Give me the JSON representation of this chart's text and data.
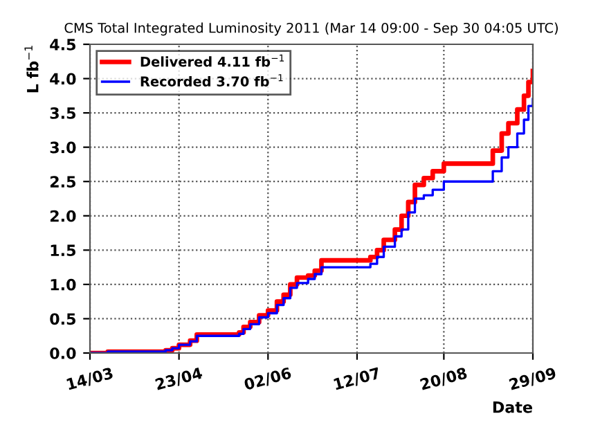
{
  "chart_data": {
    "type": "step",
    "title": "CMS Total Integrated Luminosity 2011 (Mar 14 09:00 - Sep 30 04:05 UTC)",
    "xlabel": "Date",
    "ylabel": "L fb$^{−1}$",
    "x": [
      "2011-03-14",
      "2011-03-22",
      "2011-04-11",
      "2011-04-17",
      "2011-04-20",
      "2011-04-23",
      "2011-04-28",
      "2011-05-01",
      "2011-05-17",
      "2011-05-20",
      "2011-05-22",
      "2011-05-25",
      "2011-05-29",
      "2011-06-02",
      "2011-06-06",
      "2011-06-09",
      "2011-06-12",
      "2011-06-15",
      "2011-06-20",
      "2011-06-23",
      "2011-06-26",
      "2011-07-15",
      "2011-07-18",
      "2011-07-21",
      "2011-07-24",
      "2011-07-29",
      "2011-08-01",
      "2011-08-04",
      "2011-08-07",
      "2011-08-11",
      "2011-08-15",
      "2011-08-20",
      "2011-09-07",
      "2011-09-11",
      "2011-09-15",
      "2011-09-18",
      "2011-09-22",
      "2011-09-25",
      "2011-09-27",
      "2011-09-29"
    ],
    "series": [
      {
        "name": "Delivered 4.11 fb$^{−1}$",
        "color": "#ff0000",
        "values": [
          0,
          0.02,
          0.02,
          0.04,
          0.07,
          0.12,
          0.18,
          0.27,
          0.27,
          0.3,
          0.38,
          0.45,
          0.55,
          0.62,
          0.75,
          0.85,
          1.0,
          1.1,
          1.13,
          1.2,
          1.35,
          1.35,
          1.4,
          1.5,
          1.65,
          1.8,
          2.0,
          2.2,
          2.45,
          2.55,
          2.65,
          2.76,
          2.76,
          2.95,
          3.2,
          3.35,
          3.55,
          3.75,
          3.95,
          4.11
        ]
      },
      {
        "name": "Recorded 3.70 fb$^{−1}$",
        "color": "#0000ff",
        "values": [
          0,
          0.02,
          0.02,
          0.04,
          0.07,
          0.12,
          0.17,
          0.25,
          0.25,
          0.28,
          0.35,
          0.42,
          0.52,
          0.58,
          0.7,
          0.8,
          0.95,
          1.02,
          1.08,
          1.15,
          1.25,
          1.25,
          1.3,
          1.4,
          1.55,
          1.7,
          1.8,
          2.05,
          2.25,
          2.3,
          2.38,
          2.5,
          2.5,
          2.65,
          2.85,
          3.0,
          3.2,
          3.4,
          3.6,
          3.7
        ]
      }
    ],
    "xlim": [
      "2011-03-14",
      "2011-09-29"
    ],
    "xticks": [
      {
        "value": "2011-03-14",
        "label": "14/03"
      },
      {
        "value": "2011-04-23",
        "label": "23/04"
      },
      {
        "value": "2011-06-02",
        "label": "02/06"
      },
      {
        "value": "2011-07-12",
        "label": "12/07"
      },
      {
        "value": "2011-08-20",
        "label": "20/08"
      },
      {
        "value": "2011-09-29",
        "label": "29/09"
      }
    ],
    "ylim": [
      0,
      4.5
    ],
    "yticks": [
      {
        "value": 0,
        "label": "0.0"
      },
      {
        "value": 0.5,
        "label": "0.5"
      },
      {
        "value": 1,
        "label": "1.0"
      },
      {
        "value": 1.5,
        "label": "1.5"
      },
      {
        "value": 2,
        "label": "2.0"
      },
      {
        "value": 2.5,
        "label": "2.5"
      },
      {
        "value": 3,
        "label": "3.0"
      },
      {
        "value": 3.5,
        "label": "3.5"
      },
      {
        "value": 4,
        "label": "4.0"
      },
      {
        "value": 4.5,
        "label": "4.5"
      }
    ],
    "grid": true,
    "legend": "top left",
    "line_style": "solid"
  }
}
